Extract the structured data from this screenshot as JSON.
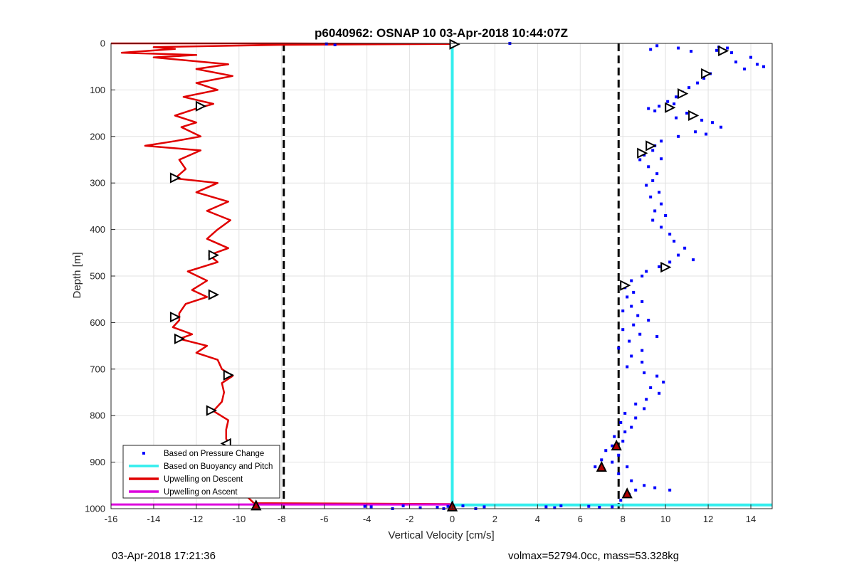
{
  "chart_data": {
    "type": "scatter",
    "title": "p6040962: OSNAP 10 03-Apr-2018 10:44:07Z",
    "xlabel": "Vertical Velocity [cm/s]",
    "ylabel": "Depth [m]",
    "xlim": [
      -16,
      15
    ],
    "ylim": [
      0,
      1000
    ],
    "y_reversed": true,
    "grid": true,
    "x_ticks": [
      -16,
      -14,
      -12,
      -10,
      -8,
      -6,
      -4,
      -2,
      0,
      2,
      4,
      6,
      8,
      10,
      12,
      14
    ],
    "y_ticks": [
      0,
      100,
      200,
      300,
      400,
      500,
      600,
      700,
      800,
      900,
      1000
    ],
    "x_tick_labels": [
      "-16",
      "-14",
      "-12",
      "-10",
      "-8",
      "-6",
      "-4",
      "-2",
      "0",
      "2",
      "4",
      "6",
      "8",
      "10",
      "12",
      "14"
    ],
    "y_tick_labels": [
      "0",
      "100",
      "200",
      "300",
      "400",
      "500",
      "600",
      "700",
      "800",
      "900",
      "1000"
    ],
    "legend_position": "bottom-left",
    "legend": [
      {
        "label": "Based on Pressure Change",
        "style": "dot",
        "color": "#0000ff"
      },
      {
        "label": "Based on Buoyancy and Pitch",
        "style": "line",
        "color": "#33eeee"
      },
      {
        "label": "Upwelling on Descent",
        "style": "line",
        "color": "#e00000"
      },
      {
        "label": "Upwelling on Ascent",
        "style": "line",
        "color": "#dd00dd"
      }
    ],
    "reference_lines": [
      {
        "x": -7.9,
        "style": "dashed",
        "color": "#000000"
      },
      {
        "x": 7.8,
        "style": "dashed",
        "color": "#000000"
      }
    ],
    "series": [
      {
        "name": "Based on Buoyancy and Pitch",
        "type": "line",
        "color": "#33eeee",
        "points": [
          [
            0,
            0
          ],
          [
            0,
            992
          ],
          [
            15,
            992
          ]
        ]
      },
      {
        "name": "Upwelling on Descent",
        "type": "line",
        "color": "#e00000",
        "points": [
          [
            -16,
            0
          ],
          [
            -8,
            0
          ],
          [
            -0.1,
            1
          ],
          [
            -8,
            3
          ],
          [
            -14,
            8
          ],
          [
            -13,
            12
          ],
          [
            -15.5,
            20
          ],
          [
            -12,
            25
          ],
          [
            -14,
            30
          ],
          [
            -10.5,
            45
          ],
          [
            -12,
            55
          ],
          [
            -10.3,
            70
          ],
          [
            -12,
            85
          ],
          [
            -11,
            100
          ],
          [
            -12.6,
            115
          ],
          [
            -11.2,
            130
          ],
          [
            -12,
            140
          ],
          [
            -13,
            155
          ],
          [
            -12,
            170
          ],
          [
            -12.7,
            180
          ],
          [
            -11.8,
            200
          ],
          [
            -13,
            210
          ],
          [
            -14.4,
            220
          ],
          [
            -11.8,
            230
          ],
          [
            -12.8,
            250
          ],
          [
            -12.5,
            270
          ],
          [
            -13,
            290
          ],
          [
            -11,
            300
          ],
          [
            -12,
            320
          ],
          [
            -10.5,
            340
          ],
          [
            -11.5,
            360
          ],
          [
            -10.4,
            380
          ],
          [
            -11,
            400
          ],
          [
            -11.5,
            420
          ],
          [
            -10.5,
            440
          ],
          [
            -11.4,
            455
          ],
          [
            -11,
            470
          ],
          [
            -12.4,
            490
          ],
          [
            -11.5,
            510
          ],
          [
            -12.2,
            530
          ],
          [
            -11.5,
            545
          ],
          [
            -12.5,
            560
          ],
          [
            -12.8,
            580
          ],
          [
            -12.8,
            595
          ],
          [
            -13.1,
            610
          ],
          [
            -12.2,
            625
          ],
          [
            -12.8,
            635
          ],
          [
            -11.5,
            650
          ],
          [
            -12,
            665
          ],
          [
            -11,
            680
          ],
          [
            -10.8,
            700
          ],
          [
            -10.3,
            715
          ],
          [
            -10.8,
            730
          ],
          [
            -10.7,
            750
          ],
          [
            -10.8,
            770
          ],
          [
            -11.2,
            790
          ],
          [
            -10.5,
            810
          ],
          [
            -10.6,
            830
          ],
          [
            -10.6,
            850
          ],
          [
            -10.4,
            865
          ],
          [
            -9.8,
            880
          ],
          [
            -10,
            900
          ],
          [
            -9.6,
            920
          ],
          [
            -9.8,
            940
          ],
          [
            -9.4,
            960
          ],
          [
            -9.6,
            975
          ],
          [
            -9.3,
            988
          ],
          [
            -0.1,
            990
          ]
        ]
      },
      {
        "name": "Upwelling on Ascent",
        "type": "line",
        "color": "#dd00dd",
        "points": [
          [
            -16,
            991
          ],
          [
            0,
            991
          ]
        ]
      },
      {
        "name": "Based on Pressure Change",
        "type": "scatter",
        "color": "#0000ff",
        "points": [
          [
            -5.9,
            1
          ],
          [
            -5.5,
            3
          ],
          [
            2.7,
            0
          ],
          [
            9.6,
            5
          ],
          [
            9.3,
            13
          ],
          [
            10.6,
            10
          ],
          [
            11.2,
            17
          ],
          [
            12.5,
            8
          ],
          [
            12.9,
            10
          ],
          [
            12.4,
            15
          ],
          [
            13.1,
            20
          ],
          [
            13.3,
            40
          ],
          [
            14,
            30
          ],
          [
            14.3,
            45
          ],
          [
            13.7,
            55
          ],
          [
            14.6,
            50
          ],
          [
            12.1,
            65
          ],
          [
            11.8,
            75
          ],
          [
            11.5,
            85
          ],
          [
            11.1,
            95
          ],
          [
            10.8,
            105
          ],
          [
            10.5,
            115
          ],
          [
            10.1,
            125
          ],
          [
            9.7,
            135
          ],
          [
            9.5,
            145
          ],
          [
            9.2,
            140
          ],
          [
            10.4,
            130
          ],
          [
            11,
            150
          ],
          [
            10.5,
            160
          ],
          [
            11.7,
            165
          ],
          [
            12.2,
            170
          ],
          [
            12.6,
            180
          ],
          [
            11.4,
            190
          ],
          [
            10.6,
            200
          ],
          [
            11.9,
            195
          ],
          [
            9.8,
            210
          ],
          [
            9.5,
            220
          ],
          [
            9.4,
            230
          ],
          [
            9,
            240
          ],
          [
            8.8,
            250
          ],
          [
            9.8,
            248
          ],
          [
            9.2,
            265
          ],
          [
            9.6,
            280
          ],
          [
            9.4,
            295
          ],
          [
            9.1,
            305
          ],
          [
            9.7,
            320
          ],
          [
            9.3,
            330
          ],
          [
            9.8,
            345
          ],
          [
            9.5,
            360
          ],
          [
            10,
            370
          ],
          [
            9.4,
            380
          ],
          [
            9.8,
            395
          ],
          [
            10.2,
            410
          ],
          [
            10.4,
            425
          ],
          [
            10.9,
            440
          ],
          [
            10.6,
            455
          ],
          [
            11.3,
            465
          ],
          [
            10.2,
            470
          ],
          [
            9.7,
            480
          ],
          [
            9.1,
            490
          ],
          [
            8.9,
            500
          ],
          [
            8.4,
            510
          ],
          [
            8.1,
            525
          ],
          [
            8.5,
            535
          ],
          [
            8.2,
            545
          ],
          [
            8.9,
            555
          ],
          [
            8.4,
            565
          ],
          [
            8,
            575
          ],
          [
            8.7,
            585
          ],
          [
            9.2,
            595
          ],
          [
            8.5,
            605
          ],
          [
            8,
            615
          ],
          [
            8.8,
            625
          ],
          [
            9.6,
            630
          ],
          [
            8.3,
            640
          ],
          [
            7.8,
            655
          ],
          [
            8.9,
            660
          ],
          [
            8.4,
            672
          ],
          [
            8.9,
            685
          ],
          [
            8.2,
            695
          ],
          [
            9,
            708
          ],
          [
            9.6,
            715
          ],
          [
            9.9,
            728
          ],
          [
            9.3,
            740
          ],
          [
            9.7,
            752
          ],
          [
            9.1,
            765
          ],
          [
            8.6,
            775
          ],
          [
            9,
            785
          ],
          [
            8.1,
            795
          ],
          [
            8.6,
            805
          ],
          [
            7.9,
            815
          ],
          [
            8.4,
            825
          ],
          [
            8.1,
            835
          ],
          [
            7.6,
            845
          ],
          [
            8,
            855
          ],
          [
            7.5,
            865
          ],
          [
            7.2,
            875
          ],
          [
            7.8,
            885
          ],
          [
            7,
            895
          ],
          [
            6.7,
            910
          ],
          [
            7.5,
            900
          ],
          [
            8.2,
            910
          ],
          [
            7.8,
            925
          ],
          [
            8.4,
            940
          ],
          [
            9,
            950
          ],
          [
            8.6,
            960
          ],
          [
            9.5,
            955
          ],
          [
            10.2,
            960
          ],
          [
            8.3,
            970
          ],
          [
            7.9,
            982
          ],
          [
            -2.3,
            994
          ],
          [
            -0.7,
            997
          ],
          [
            -3.8,
            996
          ],
          [
            -1.5,
            998
          ],
          [
            -0.4,
            1000
          ],
          [
            -4.1,
            995
          ],
          [
            -2.8,
            1000
          ],
          [
            -0.2,
            995
          ],
          [
            1.5,
            996
          ],
          [
            1.1,
            1000
          ],
          [
            0.5,
            994
          ],
          [
            4.4,
            996
          ],
          [
            4.8,
            998
          ],
          [
            6.4,
            995
          ],
          [
            6.9,
            997
          ],
          [
            5.1,
            994
          ],
          [
            7.5,
            996
          ]
        ]
      }
    ],
    "markers": [
      {
        "shape": "triangle-right",
        "color": "#ffffff",
        "points": [
          [
            0.1,
            2
          ],
          [
            12.7,
            16
          ],
          [
            11.9,
            65
          ],
          [
            10.8,
            108
          ],
          [
            10.2,
            138
          ],
          [
            11.3,
            155
          ],
          [
            9.3,
            220
          ],
          [
            8.9,
            236
          ],
          [
            10,
            481
          ],
          [
            8.1,
            520
          ],
          [
            -11.2,
            455
          ],
          [
            -11.2,
            540
          ],
          [
            -11.3,
            789
          ],
          [
            -10.5,
            713
          ],
          [
            -12.8,
            635
          ],
          [
            -13,
            289
          ],
          [
            -11.8,
            135
          ],
          [
            -13,
            588
          ]
        ]
      },
      {
        "shape": "triangle-up",
        "color": "#b00000",
        "points": [
          [
            0,
            995
          ],
          [
            -9.2,
            993
          ],
          [
            7,
            910
          ],
          [
            7.7,
            864
          ],
          [
            8.2,
            967
          ]
        ]
      },
      {
        "shape": "triangle-left",
        "color": "#ffffff",
        "points": [
          [
            -10.6,
            860
          ]
        ]
      }
    ]
  },
  "footer": {
    "left": "03-Apr-2018 17:21:36",
    "right": "volmax=52794.0cc, mass=53.328kg"
  }
}
